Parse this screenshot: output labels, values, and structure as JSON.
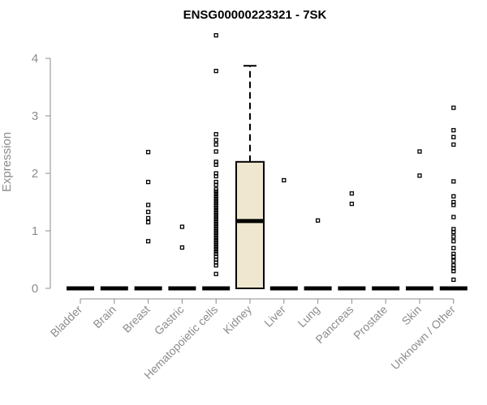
{
  "chart_data": {
    "type": "box",
    "title": "ENSG00000223321 - 7SK",
    "xlabel": "",
    "ylabel": "Expression",
    "ylim": [
      0,
      4.4
    ],
    "yticks": [
      0,
      1,
      2,
      3,
      4
    ],
    "grid": false,
    "categories": [
      "Bladder",
      "Brain",
      "Breast",
      "Gastric",
      "Hematopoietic cells",
      "Kidney",
      "Liver",
      "Lung",
      "Pancreas",
      "Prostate",
      "Skin",
      "Unknown / Other"
    ],
    "boxes": [
      {
        "category": "Bladder",
        "min": 0,
        "q1": 0,
        "median": 0,
        "q3": 0,
        "max": 0,
        "outliers": []
      },
      {
        "category": "Brain",
        "min": 0,
        "q1": 0,
        "median": 0,
        "q3": 0,
        "max": 0,
        "outliers": []
      },
      {
        "category": "Breast",
        "min": 0,
        "q1": 0,
        "median": 0,
        "q3": 0,
        "max": 0,
        "outliers": [
          2.37,
          1.85,
          1.45,
          1.33,
          1.22,
          1.15,
          0.82
        ]
      },
      {
        "category": "Gastric",
        "min": 0,
        "q1": 0,
        "median": 0,
        "q3": 0,
        "max": 0,
        "outliers": [
          1.07,
          0.71
        ]
      },
      {
        "category": "Hematopoietic cells",
        "min": 0,
        "q1": 0,
        "median": 0,
        "q3": 0,
        "max": 0,
        "outliers": [
          4.4,
          3.78,
          2.68,
          2.58,
          2.5,
          2.38,
          2.2,
          2.15,
          2.0,
          1.95,
          1.85,
          1.8,
          1.72,
          1.68,
          1.64,
          1.6,
          1.56,
          1.52,
          1.48,
          1.44,
          1.4,
          1.36,
          1.32,
          1.28,
          1.24,
          1.2,
          1.16,
          1.12,
          1.08,
          1.04,
          1.0,
          0.96,
          0.92,
          0.88,
          0.84,
          0.8,
          0.76,
          0.72,
          0.68,
          0.64,
          0.6,
          0.55,
          0.5,
          0.45,
          0.4,
          0.25
        ]
      },
      {
        "category": "Kidney",
        "min": 0,
        "q1": 0,
        "median": 1.17,
        "q3": 2.2,
        "max": 3.87,
        "outliers": []
      },
      {
        "category": "Liver",
        "min": 0,
        "q1": 0,
        "median": 0,
        "q3": 0,
        "max": 0,
        "outliers": [
          1.88
        ]
      },
      {
        "category": "Lung",
        "min": 0,
        "q1": 0,
        "median": 0,
        "q3": 0,
        "max": 0,
        "outliers": [
          1.18
        ]
      },
      {
        "category": "Pancreas",
        "min": 0,
        "q1": 0,
        "median": 0,
        "q3": 0,
        "max": 0,
        "outliers": [
          1.65,
          1.47
        ]
      },
      {
        "category": "Prostate",
        "min": 0,
        "q1": 0,
        "median": 0,
        "q3": 0,
        "max": 0,
        "outliers": []
      },
      {
        "category": "Skin",
        "min": 0,
        "q1": 0,
        "median": 0,
        "q3": 0,
        "max": 0,
        "outliers": [
          2.38,
          1.96
        ]
      },
      {
        "category": "Unknown / Other",
        "min": 0,
        "q1": 0,
        "median": 0,
        "q3": 0,
        "max": 0,
        "outliers": [
          3.14,
          2.75,
          2.63,
          2.5,
          1.86,
          1.6,
          1.5,
          1.45,
          1.24,
          1.03,
          0.98,
          0.9,
          0.82,
          0.7,
          0.6,
          0.55,
          0.48,
          0.4,
          0.35,
          0.3,
          0.15
        ]
      }
    ]
  }
}
